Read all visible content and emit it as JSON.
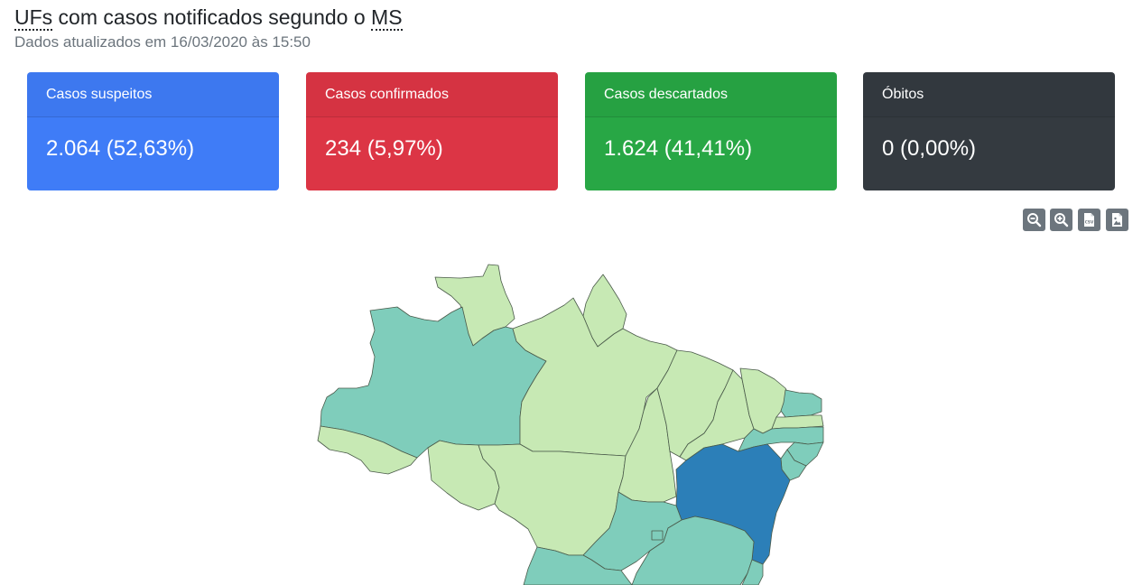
{
  "header": {
    "title_abbr_1": "UFs",
    "title_middle": " com casos notificados segundo o ",
    "title_abbr_2": "MS",
    "subtitle": "Dados atualizados em 16/03/2020 às 15:50"
  },
  "cards": [
    {
      "label": "Casos suspeitos",
      "value": "2.064 (52,63%)",
      "color": "#3f7cf7"
    },
    {
      "label": "Casos confirmados",
      "value": "234 (5,97%)",
      "color": "#dc3545"
    },
    {
      "label": "Casos descartados",
      "value": "1.624 (41,41%)",
      "color": "#28a745"
    },
    {
      "label": "Óbitos",
      "value": "0 (0,00%)",
      "color": "#343a40"
    }
  ],
  "toolbar": [
    {
      "icon": "zoom-out-icon"
    },
    {
      "icon": "zoom-in-icon"
    },
    {
      "icon": "csv-file-icon",
      "text": "CSV"
    },
    {
      "icon": "image-file-icon"
    }
  ],
  "map": {
    "colors": {
      "low": "#c7e9b4",
      "mid": "#7fcdbb",
      "high": "#2c7fb8"
    }
  }
}
